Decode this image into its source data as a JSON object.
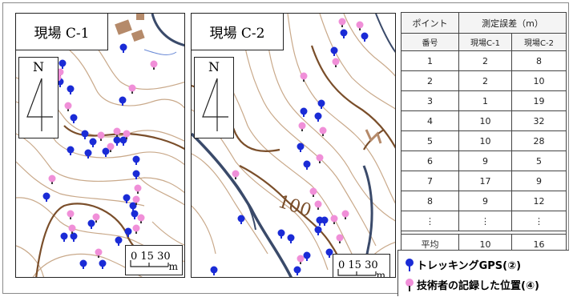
{
  "maps": [
    {
      "title": "現場 C-1",
      "north": "N",
      "scale": {
        "ticks": "0 15 30",
        "unit": "m"
      }
    },
    {
      "title": "現場 C-2",
      "north": "N",
      "scale": {
        "ticks": "0 15 30",
        "unit": "m"
      }
    }
  ],
  "contour_label": "100",
  "table": {
    "col1_header": "ポイント",
    "col1_subheader": "番号",
    "group_header": "測定誤差（m）",
    "col2_header": "現場C-1",
    "col3_header": "現場C-2",
    "rows": [
      [
        "1",
        "2",
        "8"
      ],
      [
        "2",
        "2",
        "10"
      ],
      [
        "3",
        "1",
        "19"
      ],
      [
        "4",
        "10",
        "32"
      ],
      [
        "5",
        "10",
        "28"
      ],
      [
        "6",
        "9",
        "5"
      ],
      [
        "7",
        "17",
        "9"
      ],
      [
        "8",
        "9",
        "12"
      ],
      [
        "⋮",
        "⋮",
        "⋮"
      ]
    ],
    "average_row": [
      "平均",
      "10",
      "16"
    ]
  },
  "legend": [
    {
      "label": "トレッキングGPS(②)",
      "color": "#1a2bd6"
    },
    {
      "label": "技術者の記録した位置(④)",
      "color": "#f08fd8"
    }
  ],
  "colors": {
    "gps_pin": "#1a2bd6",
    "recorded_pin": "#f08fd8",
    "contour": "#c9a98a",
    "index_contour": "#7a4e2a",
    "road": "#3a4a6a"
  }
}
